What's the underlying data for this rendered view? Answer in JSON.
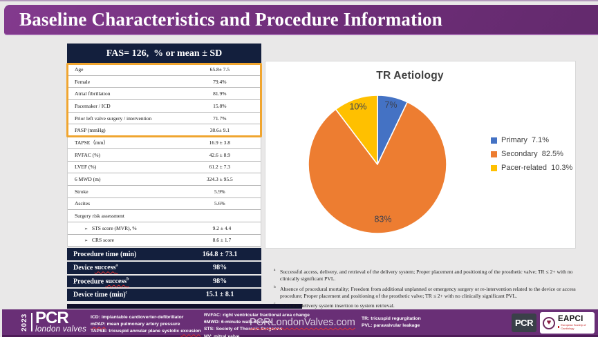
{
  "title": "Baseline Characteristics and Procedure Information",
  "table": {
    "header": "FAS= 126,  % or mean ± SD",
    "rows": [
      {
        "label": "Age",
        "value": "65.8± 7.5",
        "highlight": true
      },
      {
        "label": "Female",
        "value": "79.4%",
        "highlight": true
      },
      {
        "label": "Atrial fibrillation",
        "value": "81.9%",
        "highlight": true
      },
      {
        "label": "Pacemaker / ICD",
        "value": "15.8%",
        "highlight": true
      },
      {
        "label": "Prior left valve surgery / intervention",
        "value": "71.7%",
        "highlight": true
      },
      {
        "label": "PASP (mmHg)",
        "value": "38.6± 9.1",
        "highlight": true
      },
      {
        "label": "TAPSE（mm）",
        "value": "16.9 ± 3.8"
      },
      {
        "label": "RVFAC (%)",
        "value": "42.6 ± 8.9"
      },
      {
        "label": "LVEF (%)",
        "value": "61.2 ± 7.3"
      },
      {
        "label": "6 MWD (m)",
        "value": "324.3 ± 95.5"
      },
      {
        "label": "Stroke",
        "value": "5.9%"
      },
      {
        "label": "Ascites",
        "value": "5.6%"
      },
      {
        "label": "Surgery risk assessment",
        "value": ""
      },
      {
        "label": "STS score (MVR), %",
        "value": "9.2 ± 4.4",
        "indent": true
      },
      {
        "label": "CRS score",
        "value": "8.6 ± 1.7",
        "indent": true
      }
    ],
    "summary_rows": [
      {
        "prefix": "Procedure time (min)",
        "wavy": "",
        "sup": "",
        "value": "164.8 ± 73.1"
      },
      {
        "prefix": "Device ",
        "wavy": "success",
        "sup": "a",
        "value": "98%"
      },
      {
        "prefix": "Procedure ",
        "wavy": "success",
        "sup": "b",
        "value": "98%"
      },
      {
        "prefix": "Device time (min)",
        "wavy": "",
        "sup": "c",
        "value": "15.1 ± 8.1"
      }
    ]
  },
  "chart_data": {
    "type": "pie",
    "title": "TR Aetiology",
    "start_angle_deg": 0,
    "legend_position": "right",
    "slices": [
      {
        "label": "Primary",
        "value": 7.1,
        "data_label": "7%",
        "legend": "Primary  7.1%",
        "color": "#4472C4"
      },
      {
        "label": "Secondary",
        "value": 82.5,
        "data_label": "83%",
        "legend": "Secondary  82.5%",
        "color": "#ED7D31"
      },
      {
        "label": "Pacer-related",
        "value": 10.3,
        "data_label": "10%",
        "legend": "Pacer-related  10.3%",
        "color": "#FFC000"
      }
    ]
  },
  "footnotes": [
    {
      "marker": "a",
      "text": "Successful access, delivery, and retrieval of the delivery system; Proper placement and positioning of the prosthetic valve; TR ≤ 2+ with  no clinically significant PVL."
    },
    {
      "marker": "b",
      "text": "Absence of procedural mortality; Freedom from additional unplanned or emergency surgery or re-intervention related to the device or access procedure; Proper placement and positioning of the prosthetic valve; TR ≤ 2+ with  no clinically significant PVL."
    },
    {
      "marker": "c",
      "text": "From the delivery system insertion to system retrieval."
    }
  ],
  "footer": {
    "year": "2023",
    "brand": "PCR",
    "brand_sub": "london valves",
    "abbr_col1": [
      {
        "pre": "ICD: implantable cardioverter-defibrillator",
        "wavy": "",
        "post": ""
      },
      {
        "pre": "",
        "wavy": "mPAP:",
        "post": " mean pulmonary artery pressure"
      },
      {
        "pre": "TAPSE: tricuspid annular plane systolic ",
        "wavy": "excusion",
        "post": ""
      }
    ],
    "abbr_col2": [
      "RVFAC: right ventricular fractional area change",
      "6MWD: 6-minute walk distance",
      "STS: Society of Thoracic Surgeons",
      "MV: mitral valve"
    ],
    "website": "PCRLondonValves.com",
    "abbr_col3": [
      "TR: tricuspid regurgitation",
      "PVL: paravalvular leakage"
    ],
    "pcr_badge": "PCR",
    "eapci_name": "EAPCI",
    "eapci_sub": "European Society of Cardiology"
  },
  "colors": {
    "title_bar": "#6f2f7a",
    "footer_bar": "#692f76",
    "table_dark": "#131f3d",
    "highlight_border": "#f0a52f",
    "background": "#e9e8e8",
    "pie_blue": "#4472C4",
    "pie_orange": "#ED7D31",
    "pie_yellow": "#FFC000"
  }
}
